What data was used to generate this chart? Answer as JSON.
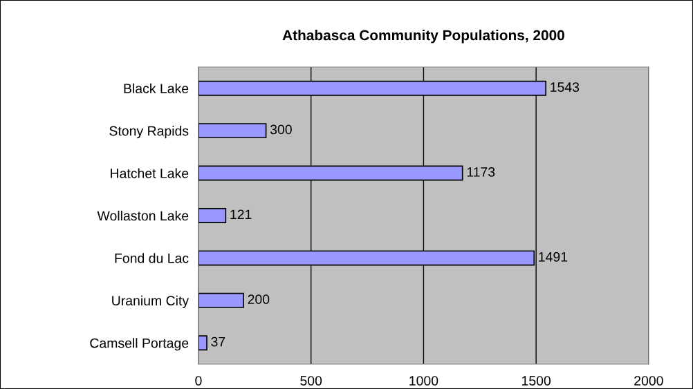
{
  "chart_data": {
    "type": "bar",
    "orientation": "horizontal",
    "title": "Athabasca Community Populations, 2000",
    "categories": [
      "Black Lake",
      "Stony Rapids",
      "Hatchet Lake",
      "Wollaston Lake",
      "Fond du Lac",
      "Uranium City",
      "Camsell Portage"
    ],
    "values": [
      1543,
      300,
      1173,
      121,
      1491,
      200,
      37
    ],
    "color": "#9999ff",
    "xlim": [
      0,
      2000
    ],
    "xticks": [
      0,
      500,
      1000,
      1500,
      2000
    ],
    "grid": "x",
    "data_labels": true,
    "legend": false
  }
}
